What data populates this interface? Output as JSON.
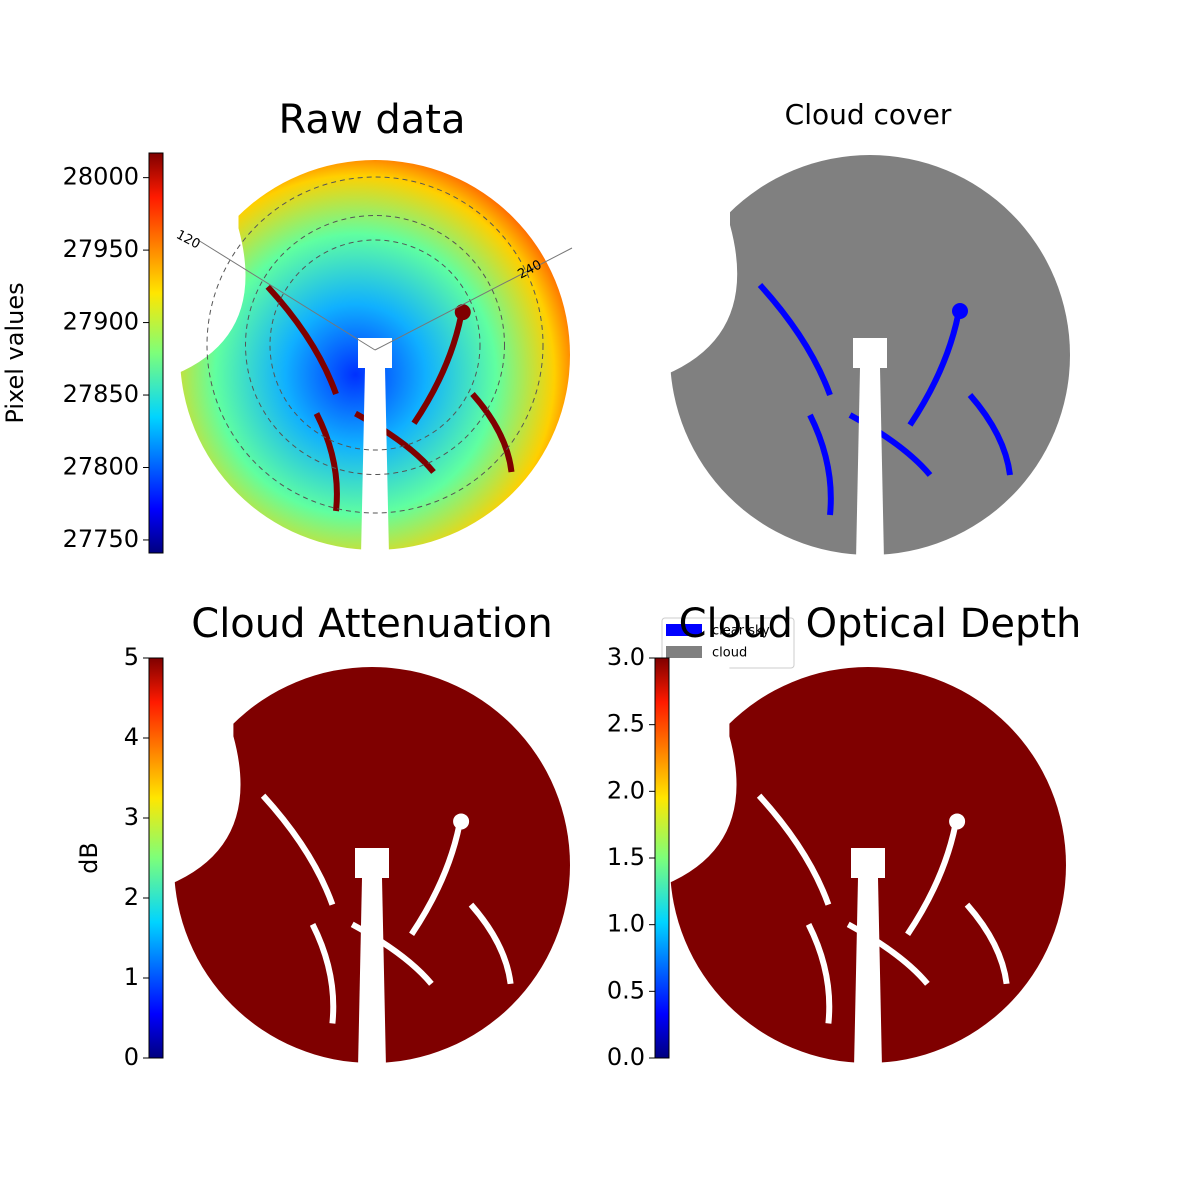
{
  "chart_data": [
    {
      "type": "image",
      "title": "Raw data",
      "colorbar_label": "Pixel values",
      "ylim": [
        27741,
        28017
      ],
      "yticks": [
        27750,
        27800,
        27850,
        27900,
        27950,
        28000
      ],
      "annotations": [
        "120",
        "240"
      ]
    },
    {
      "type": "image",
      "title": "Cloud cover",
      "series": [
        {
          "name": "clear sky",
          "color": "#0000ff"
        },
        {
          "name": "cloud",
          "color": "#808080"
        }
      ]
    },
    {
      "type": "image",
      "title": "Cloud Attenuation",
      "colorbar_label": "dB",
      "ylim": [
        0,
        5
      ],
      "yticks": [
        0,
        1,
        2,
        3,
        4,
        5
      ]
    },
    {
      "type": "image",
      "title": "Cloud Optical Depth",
      "ylim": [
        0,
        3
      ],
      "yticks": [
        {
          "value": 0,
          "label": "0.0"
        },
        0.5,
        {
          "value": 1,
          "label": "1.0"
        },
        1.5,
        {
          "value": 2,
          "label": "2.0"
        },
        2.5,
        {
          "value": 3,
          "label": "3.0"
        }
      ]
    }
  ]
}
